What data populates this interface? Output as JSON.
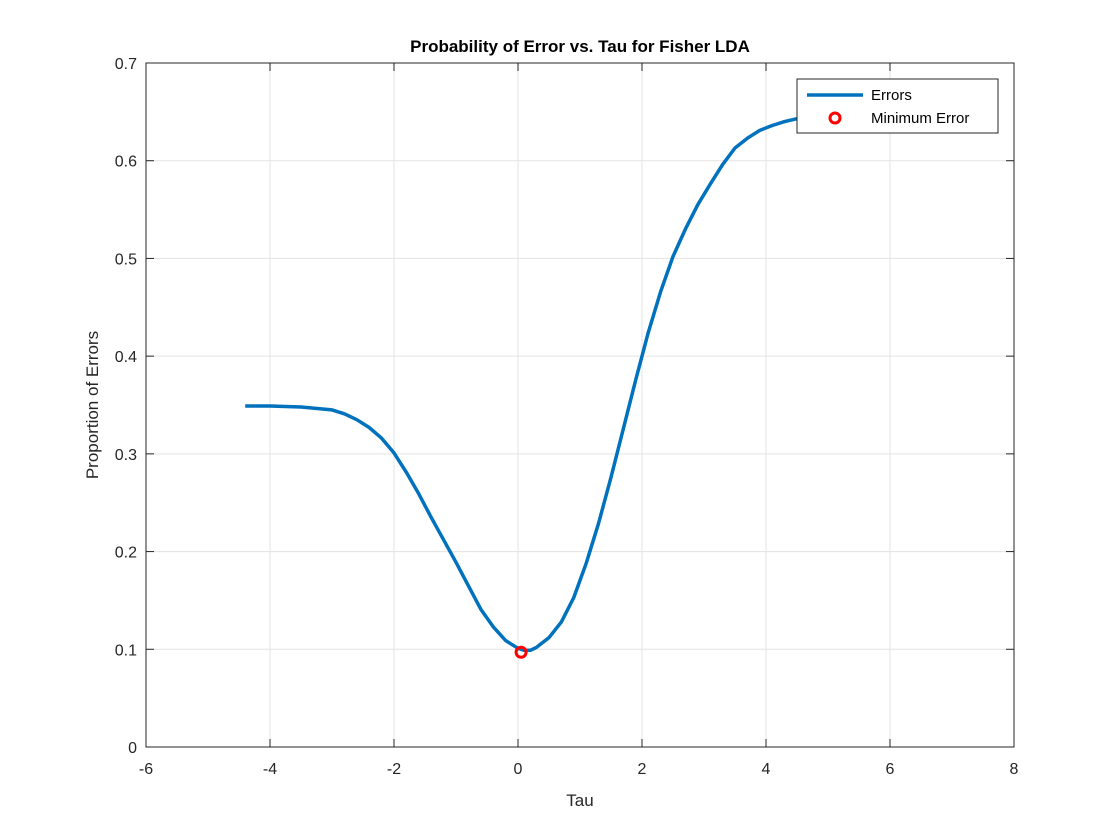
{
  "chart_data": {
    "type": "line",
    "title": "Probability of Error vs. Tau for Fisher LDA",
    "xlabel": "Tau",
    "ylabel": "Proportion of Errors",
    "xlim": [
      -6,
      8
    ],
    "ylim": [
      0,
      0.7
    ],
    "xticks": [
      "-6",
      "-4",
      "-2",
      "0",
      "2",
      "4",
      "6",
      "8"
    ],
    "yticks": [
      "0",
      "0.1",
      "0.2",
      "0.3",
      "0.4",
      "0.5",
      "0.6",
      "0.7"
    ],
    "grid": true,
    "legend_position": "top-right",
    "series": [
      {
        "name": "Errors",
        "color": "#0072BD",
        "style": "line",
        "x": [
          -4.4,
          -4.0,
          -3.5,
          -3.0,
          -2.8,
          -2.6,
          -2.4,
          -2.2,
          -2.0,
          -1.8,
          -1.6,
          -1.4,
          -1.2,
          -1.0,
          -0.8,
          -0.6,
          -0.4,
          -0.2,
          0.0,
          0.1,
          0.2,
          0.3,
          0.5,
          0.7,
          0.9,
          1.1,
          1.3,
          1.5,
          1.7,
          1.9,
          2.1,
          2.3,
          2.5,
          2.7,
          2.9,
          3.1,
          3.3,
          3.5,
          3.7,
          3.9,
          4.1,
          4.3,
          4.5
        ],
        "y": [
          0.349,
          0.349,
          0.348,
          0.345,
          0.341,
          0.335,
          0.327,
          0.316,
          0.301,
          0.281,
          0.259,
          0.235,
          0.212,
          0.189,
          0.165,
          0.141,
          0.123,
          0.109,
          0.101,
          0.099,
          0.099,
          0.102,
          0.112,
          0.128,
          0.153,
          0.188,
          0.229,
          0.276,
          0.326,
          0.376,
          0.424,
          0.466,
          0.502,
          0.53,
          0.555,
          0.576,
          0.596,
          0.613,
          0.623,
          0.631,
          0.636,
          0.64,
          0.643
        ]
      },
      {
        "name": "Minimum Error",
        "color": "#FF0000",
        "style": "marker",
        "x": [
          0.05
        ],
        "y": [
          0.097
        ]
      }
    ]
  }
}
